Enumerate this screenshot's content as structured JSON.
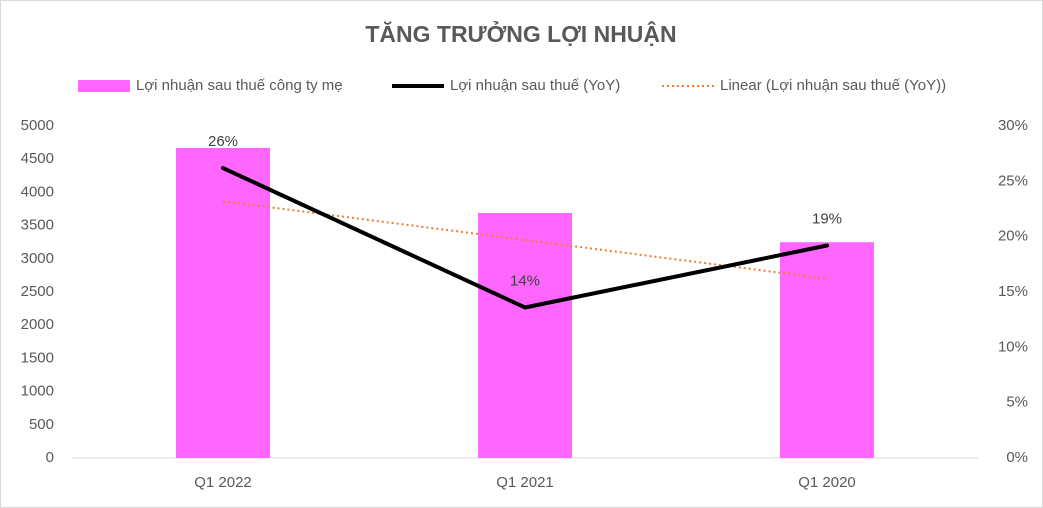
{
  "chart_data": {
    "type": "bar-line",
    "title": "TĂNG TRƯỞNG LỢI NHUẬN",
    "categories": [
      "Q1 2022",
      "Q1 2021",
      "Q1 2020"
    ],
    "series": [
      {
        "name": "Lợi nhuận sau thuế công ty mẹ",
        "type": "bar",
        "color": "#ff66ff",
        "values": [
          4670,
          3690,
          3250
        ]
      },
      {
        "name": "Lợi nhuận sau thuế (YoY)",
        "type": "line",
        "axis": "y2",
        "color": "#000000",
        "values": [
          26.2,
          13.6,
          19.2
        ],
        "value_labels": [
          "26%",
          "14%",
          "19%"
        ]
      },
      {
        "name": "Linear (Lợi nhuận sau thuế (YoY))",
        "type": "trend",
        "axis": "y2",
        "color": "#ed7d31",
        "values": [
          23.2,
          19.7,
          16.2
        ]
      }
    ],
    "ylim": [
      0,
      5000
    ],
    "yticks": [
      0,
      500,
      1000,
      1500,
      2000,
      2500,
      3000,
      3500,
      4000,
      4500,
      5000
    ],
    "y2lim": [
      0,
      30
    ],
    "y2ticks": [
      {
        "value": 0,
        "label": "0%"
      },
      {
        "value": 5,
        "label": "5%"
      },
      {
        "value": 10,
        "label": "10%"
      },
      {
        "value": 15,
        "label": "15%"
      },
      {
        "value": 20,
        "label": "20%"
      },
      {
        "value": 25,
        "label": "25%"
      },
      {
        "value": 30,
        "label": "30%"
      }
    ],
    "legend": "top"
  }
}
